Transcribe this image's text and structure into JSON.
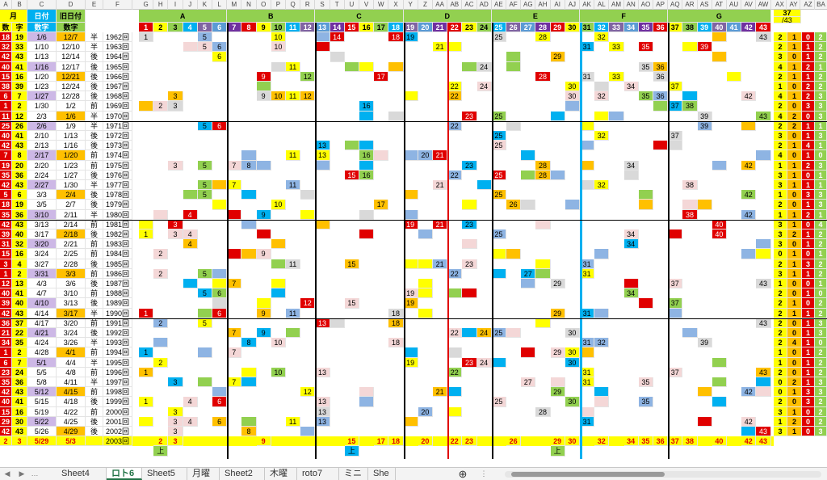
{
  "columns": [
    "A",
    "B",
    "C",
    "D",
    "E",
    "F",
    "G",
    "H",
    "I",
    "J",
    "K",
    "L",
    "M",
    "N",
    "O",
    "P",
    "Q",
    "R",
    "S",
    "T",
    "U",
    "V",
    "W",
    "X",
    "Y",
    "Z",
    "AA",
    "AB",
    "AC",
    "AD",
    "AE",
    "AF",
    "AG",
    "AH",
    "AI",
    "AJ",
    "AK",
    "AL",
    "AM",
    "AN",
    "AO",
    "AP",
    "AQ",
    "AR",
    "AS",
    "AT",
    "AU",
    "AV",
    "AW",
    "AX",
    "AY",
    "AZ",
    "BA"
  ],
  "header": {
    "month_label": "月",
    "day_label": "日付",
    "old_label": "旧日付",
    "num1": "数",
    "num2": "字",
    "date_num": "数字",
    "old_num": "数字",
    "groups": [
      "A",
      "B",
      "C",
      "D",
      "E",
      "F",
      "G"
    ],
    "total_top": "37",
    "total_sub": "/43"
  },
  "numbers": [
    "1",
    "2",
    "3",
    "4",
    "5",
    "6",
    "7",
    "8",
    "9",
    "10",
    "11",
    "12",
    "13",
    "14",
    "15",
    "16",
    "17",
    "18",
    "19",
    "20",
    "21",
    "22",
    "23",
    "24",
    "25",
    "26",
    "27",
    "28",
    "29",
    "30",
    "31",
    "32",
    "33",
    "34",
    "35",
    "36",
    "37",
    "38",
    "39",
    "40",
    "41",
    "42",
    "43"
  ],
  "rows": [
    [
      "18",
      "19",
      "1/6",
      "12/7",
      "半",
      "1962"
    ],
    [
      "32",
      "33",
      "1/10",
      "12/10",
      "半",
      "1963"
    ],
    [
      "42",
      "43",
      "1/13",
      "12/14",
      "後",
      "1964"
    ],
    [
      "40",
      "41",
      "1/16",
      "12/17",
      "後",
      "1965"
    ],
    [
      "15",
      "16",
      "1/20",
      "12/21",
      "後",
      "1966"
    ],
    [
      "38",
      "39",
      "1/23",
      "12/24",
      "後",
      "1967"
    ],
    [
      "6",
      "7",
      "1/27",
      "12/28",
      "後",
      "1968"
    ],
    [
      "1",
      "2",
      "1/30",
      "1/2",
      "前",
      "1969"
    ],
    [
      "11",
      "12",
      "2/3",
      "1/6",
      "半",
      "1970"
    ],
    [
      "25",
      "26",
      "2/6",
      "1/9",
      "半",
      "1971"
    ],
    [
      "40",
      "41",
      "2/10",
      "1/13",
      "後",
      "1972"
    ],
    [
      "42",
      "43",
      "2/13",
      "1/16",
      "後",
      "1973"
    ],
    [
      "7",
      "8",
      "2/17",
      "1/20",
      "前",
      "1974"
    ],
    [
      "19",
      "20",
      "2/20",
      "1/23",
      "前",
      "1975"
    ],
    [
      "35",
      "36",
      "2/24",
      "1/27",
      "後",
      "1976"
    ],
    [
      "42",
      "43",
      "2/27",
      "1/30",
      "半",
      "1977"
    ],
    [
      "5",
      "6",
      "3/3",
      "2/4",
      "後",
      "1978"
    ],
    [
      "18",
      "19",
      "3/5",
      "2/7",
      "後",
      "1979"
    ],
    [
      "35",
      "36",
      "3/10",
      "2/11",
      "半",
      "1980"
    ],
    [
      "42",
      "43",
      "3/13",
      "2/14",
      "前",
      "1981"
    ],
    [
      "39",
      "40",
      "3/17",
      "2/18",
      "後",
      "1982"
    ],
    [
      "31",
      "32",
      "3/20",
      "2/21",
      "前",
      "1983"
    ],
    [
      "15",
      "16",
      "3/24",
      "2/25",
      "前",
      "1984"
    ],
    [
      "3",
      "4",
      "3/27",
      "2/28",
      "後",
      "1985"
    ],
    [
      "1",
      "2",
      "3/31",
      "3/3",
      "前",
      "1986"
    ],
    [
      "12",
      "13",
      "4/3",
      "3/6",
      "後",
      "1987"
    ],
    [
      "40",
      "41",
      "4/7",
      "3/10",
      "前",
      "1988"
    ],
    [
      "39",
      "40",
      "4/10",
      "3/13",
      "後",
      "1989"
    ],
    [
      "42",
      "43",
      "4/14",
      "3/17",
      "半",
      "1990"
    ],
    [
      "36",
      "37",
      "4/17",
      "3/20",
      "前",
      "1991"
    ],
    [
      "21",
      "22",
      "4/21",
      "3/24",
      "後",
      "1992"
    ],
    [
      "34",
      "35",
      "4/24",
      "3/26",
      "半",
      "1993"
    ],
    [
      "1",
      "2",
      "4/28",
      "4/1",
      "前",
      "1994"
    ],
    [
      "6",
      "7",
      "5/1",
      "4/4",
      "半",
      "1995"
    ],
    [
      "23",
      "24",
      "5/5",
      "4/8",
      "前",
      "1996"
    ],
    [
      "35",
      "36",
      "5/8",
      "4/11",
      "半",
      "1997"
    ],
    [
      "42",
      "43",
      "5/12",
      "4/15",
      "前",
      "1998"
    ],
    [
      "40",
      "41",
      "5/15",
      "4/18",
      "後",
      "1999"
    ],
    [
      "15",
      "16",
      "5/19",
      "4/22",
      "前",
      "2000"
    ],
    [
      "29",
      "30",
      "5/22",
      "4/25",
      "後",
      "2001"
    ],
    [
      "42",
      "43",
      "5/26",
      "4/29",
      "後",
      "2002"
    ]
  ],
  "last_row": {
    "b": "2",
    "c": "3",
    "date": "5/29",
    "old": "5/3",
    "idx": "2003",
    "vals": [
      "2",
      "3",
      "9",
      "15",
      "17",
      "18",
      "20",
      "22",
      "23",
      "26",
      "29",
      "30",
      "32",
      "34",
      "35",
      "36",
      "37",
      "38",
      "40",
      "42",
      "43"
    ]
  },
  "marks": {
    "up": "上",
    "down": "下",
    "arrow": "←"
  },
  "totals": [
    [
      "2",
      "1",
      "0",
      "2"
    ],
    [
      "2",
      "1",
      "1",
      "2"
    ],
    [
      "3",
      "0",
      "1",
      "2"
    ],
    [
      "4",
      "1",
      "2",
      "1"
    ],
    [
      "2",
      "1",
      "1",
      "2"
    ],
    [
      "1",
      "0",
      "2",
      "2"
    ],
    [
      "4",
      "1",
      "2",
      "3"
    ],
    [
      "2",
      "0",
      "3",
      "3"
    ],
    [
      "4",
      "2",
      "0",
      "3"
    ],
    [
      "2",
      "2",
      "1",
      "1"
    ],
    [
      "3",
      "0",
      "1",
      "3"
    ],
    [
      "2",
      "1",
      "4",
      "1"
    ],
    [
      "4",
      "0",
      "1",
      "0"
    ],
    [
      "1",
      "1",
      "2",
      "3"
    ],
    [
      "3",
      "1",
      "0",
      "1"
    ],
    [
      "3",
      "1",
      "1",
      "1"
    ],
    [
      "1",
      "0",
      "3",
      "3"
    ],
    [
      "2",
      "0",
      "1",
      "3"
    ],
    [
      "1",
      "1",
      "2",
      "1"
    ],
    [
      "3",
      "1",
      "0",
      "4"
    ],
    [
      "3",
      "2",
      "1",
      "2"
    ],
    [
      "3",
      "0",
      "1",
      "2"
    ],
    [
      "0",
      "1",
      "0",
      "1"
    ],
    [
      "2",
      "1",
      "3",
      "2"
    ],
    [
      "3",
      "1",
      "1",
      "2"
    ],
    [
      "1",
      "0",
      "0",
      "1"
    ],
    [
      "2",
      "0",
      "1",
      "0"
    ],
    [
      "2",
      "1",
      "0",
      "2"
    ],
    [
      "2",
      "1",
      "1",
      "2"
    ],
    [
      "2",
      "0",
      "1",
      "3"
    ],
    [
      "2",
      "0",
      "1",
      "3"
    ],
    [
      "2",
      "4",
      "1",
      "0"
    ],
    [
      "1",
      "0",
      "1",
      "2"
    ],
    [
      "1",
      "0",
      "1",
      "2"
    ],
    [
      "2",
      "0",
      "1",
      "2"
    ],
    [
      "0",
      "2",
      "1",
      "3"
    ],
    [
      "0",
      "1",
      "3",
      "3"
    ],
    [
      "2",
      "0",
      "3",
      "2"
    ],
    [
      "3",
      "1",
      "0",
      "2"
    ],
    [
      "1",
      "2",
      "0",
      "2"
    ],
    [
      "3",
      "1",
      "0",
      "3"
    ]
  ],
  "tabs": [
    "Sheet4",
    "ロト6",
    "Sheet5",
    "月曜",
    "Sheet2",
    "木曜",
    "roto7",
    "ミニ",
    "She"
  ],
  "active_tab": "ロト6",
  "colors": {
    "red": "#e00000",
    "yellow": "#ffff00",
    "blue": "#00b0f0",
    "green": "#92d050",
    "orange": "#ffc000",
    "pink": "#f4d7d7",
    "purple": "#8064a2",
    "grey": "#d9d9d9",
    "navy": "#3030a0"
  }
}
